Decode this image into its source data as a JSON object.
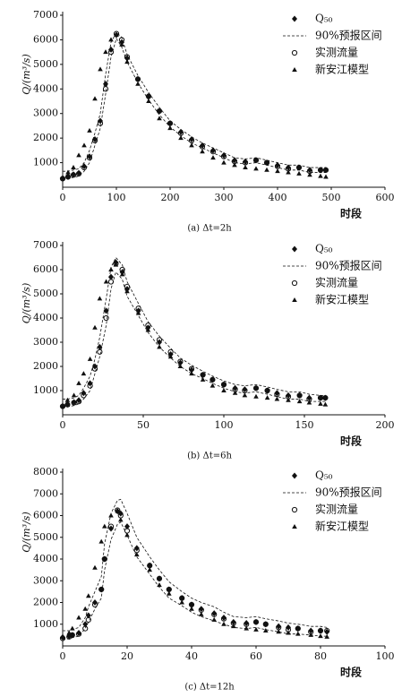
{
  "chart_data": [
    {
      "type": "line",
      "caption": "(a) Δt=2h",
      "xlabel": "时段",
      "ylabel": "Q/(m³/s)",
      "x": [
        0,
        10,
        20,
        30,
        40,
        50,
        60,
        70,
        80,
        90,
        100,
        110,
        120,
        140,
        160,
        180,
        200,
        220,
        240,
        260,
        280,
        300,
        320,
        340,
        360,
        380,
        400,
        420,
        440,
        460,
        480,
        490
      ],
      "xlim": [
        0,
        600
      ],
      "xticks": [
        0,
        100,
        200,
        300,
        400,
        500,
        600
      ],
      "ylim": [
        0,
        7000
      ],
      "yticks": [
        1000,
        2000,
        3000,
        4000,
        5000,
        6000,
        7000
      ],
      "series": [
        {
          "name": "Q₅₀",
          "color": "#111111",
          "marker": "diamond",
          "values": [
            350,
            430,
            520,
            580,
            850,
            1250,
            1950,
            2700,
            4200,
            5600,
            6200,
            5900,
            5250,
            4400,
            3700,
            3100,
            2600,
            2250,
            1950,
            1700,
            1500,
            1300,
            1100,
            1050,
            1100,
            1000,
            900,
            800,
            800,
            700,
            700,
            700
          ]
        },
        {
          "name": "90%预报区间",
          "color": "#111111",
          "marker": "dashed",
          "lower": [
            300,
            350,
            400,
            450,
            650,
            1000,
            1700,
            2400,
            3800,
            5300,
            6050,
            5700,
            5100,
            4250,
            3550,
            2950,
            2450,
            2100,
            1800,
            1600,
            1400,
            1200,
            1000,
            950,
            1000,
            900,
            800,
            700,
            700,
            600,
            600,
            600
          ],
          "upper": [
            650,
            650,
            700,
            750,
            1000,
            1500,
            2200,
            3000,
            4600,
            5900,
            6300,
            6100,
            5400,
            4550,
            3850,
            3250,
            2700,
            2350,
            2050,
            1800,
            1600,
            1400,
            1200,
            1150,
            1200,
            1100,
            1000,
            900,
            900,
            800,
            800,
            800
          ]
        },
        {
          "name": "实测流量",
          "color": "#111111",
          "marker": "circle-open",
          "values": [
            350,
            420,
            500,
            550,
            800,
            1200,
            1900,
            2600,
            4000,
            5500,
            6250,
            6000,
            5300,
            4400,
            3700,
            3100,
            2600,
            2200,
            1900,
            1650,
            1450,
            1250,
            1050,
            1000,
            1100,
            1000,
            850,
            750,
            800,
            650,
            700,
            700
          ]
        },
        {
          "name": "新安江模型",
          "color": "#111111",
          "marker": "triangle",
          "values": [
            400,
            600,
            800,
            1300,
            1700,
            2300,
            3600,
            4800,
            5500,
            6000,
            6200,
            5800,
            5100,
            4200,
            3500,
            2800,
            2400,
            2000,
            1700,
            1450,
            1200,
            1000,
            900,
            800,
            750,
            700,
            650,
            600,
            550,
            500,
            450,
            420
          ]
        }
      ]
    },
    {
      "type": "line",
      "caption": "(b) Δt=6h",
      "xlabel": "时段",
      "ylabel": "Q/(m³/s)",
      "x": [
        0,
        3,
        7,
        10,
        13,
        17,
        20,
        23,
        27,
        30,
        33,
        37,
        40,
        47,
        53,
        60,
        67,
        73,
        80,
        87,
        93,
        100,
        107,
        113,
        120,
        127,
        133,
        140,
        147,
        153,
        160,
        163
      ],
      "xlim": [
        0,
        200
      ],
      "xticks": [
        0,
        50,
        100,
        150,
        200
      ],
      "ylim": [
        0,
        7000
      ],
      "yticks": [
        1000,
        2000,
        3000,
        4000,
        5000,
        6000,
        7000
      ],
      "series": [
        {
          "name": "Q₅₀",
          "color": "#111111",
          "marker": "diamond",
          "values": [
            350,
            430,
            520,
            600,
            900,
            1300,
            2000,
            2800,
            4300,
            5700,
            6300,
            5900,
            5200,
            4300,
            3600,
            3000,
            2500,
            2150,
            1850,
            1650,
            1450,
            1250,
            1100,
            1050,
            1100,
            1000,
            900,
            800,
            800,
            700,
            700,
            700
          ]
        },
        {
          "name": "90%预报区间",
          "color": "#111111",
          "marker": "dashed",
          "lower": [
            300,
            330,
            380,
            450,
            650,
            1000,
            1700,
            2400,
            3700,
            5200,
            5900,
            5600,
            4900,
            4100,
            3400,
            2800,
            2350,
            2000,
            1700,
            1500,
            1300,
            1100,
            950,
            900,
            950,
            850,
            750,
            650,
            650,
            550,
            550,
            550
          ],
          "upper": [
            650,
            650,
            700,
            800,
            1100,
            1600,
            2300,
            3200,
            4800,
            6100,
            6500,
            6200,
            5500,
            4600,
            3850,
            3250,
            2750,
            2350,
            2050,
            1800,
            1600,
            1400,
            1250,
            1200,
            1250,
            1150,
            1050,
            950,
            950,
            850,
            800,
            800
          ]
        },
        {
          "name": "实测流量",
          "color": "#111111",
          "marker": "circle-open",
          "values": [
            350,
            420,
            500,
            550,
            800,
            1200,
            1900,
            2600,
            4000,
            5500,
            6250,
            6000,
            5300,
            4400,
            3700,
            3100,
            2600,
            2200,
            1900,
            1650,
            1450,
            1250,
            1050,
            1000,
            1100,
            1000,
            850,
            750,
            800,
            650,
            700,
            700
          ]
        },
        {
          "name": "新安江模型",
          "color": "#111111",
          "marker": "triangle",
          "values": [
            400,
            600,
            800,
            1300,
            1700,
            2300,
            3600,
            4800,
            5500,
            6000,
            6200,
            5800,
            5100,
            4200,
            3500,
            2800,
            2400,
            2000,
            1700,
            1450,
            1200,
            1000,
            900,
            800,
            750,
            700,
            650,
            600,
            550,
            500,
            450,
            420
          ]
        }
      ]
    },
    {
      "type": "line",
      "caption": "(c) Δt=12h",
      "xlabel": "时段",
      "ylabel": "Q/(m³/s)",
      "x": [
        0,
        2,
        3,
        5,
        7,
        8,
        10,
        12,
        13,
        15,
        17,
        18,
        20,
        23,
        27,
        30,
        33,
        37,
        40,
        43,
        47,
        50,
        53,
        57,
        60,
        63,
        67,
        70,
        73,
        77,
        80,
        82
      ],
      "xlim": [
        0,
        100
      ],
      "xticks": [
        0,
        20,
        40,
        60,
        80,
        100
      ],
      "ylim": [
        0,
        8000
      ],
      "yticks": [
        1000,
        2000,
        3000,
        4000,
        5000,
        6000,
        7000,
        8000
      ],
      "series": [
        {
          "name": "Q₅₀",
          "color": "#111111",
          "marker": "diamond",
          "values": [
            400,
            450,
            500,
            600,
            1000,
            1400,
            2000,
            2600,
            4000,
            5400,
            6200,
            6100,
            5500,
            4500,
            3700,
            3100,
            2600,
            2200,
            1900,
            1700,
            1500,
            1300,
            1100,
            1050,
            1100,
            1000,
            900,
            850,
            800,
            700,
            700,
            650
          ]
        },
        {
          "name": "90%预报区间",
          "color": "#111111",
          "marker": "dashed",
          "lower": [
            300,
            330,
            380,
            450,
            800,
            1100,
            1700,
            2200,
            3500,
            4900,
            5600,
            5700,
            5100,
            4100,
            3300,
            2700,
            2200,
            1850,
            1550,
            1350,
            1150,
            1000,
            850,
            800,
            850,
            750,
            650,
            550,
            550,
            500,
            450,
            450
          ],
          "upper": [
            700,
            700,
            750,
            850,
            1300,
            1800,
            2500,
            3200,
            4700,
            6100,
            6700,
            6750,
            6100,
            5000,
            4100,
            3500,
            2950,
            2500,
            2200,
            2000,
            1800,
            1550,
            1350,
            1300,
            1350,
            1250,
            1150,
            1050,
            1000,
            900,
            900,
            850
          ]
        },
        {
          "name": "实测流量",
          "color": "#111111",
          "marker": "circle-open",
          "values": [
            350,
            420,
            500,
            550,
            800,
            1200,
            1900,
            2600,
            4000,
            5500,
            6250,
            6000,
            5300,
            4400,
            3700,
            3100,
            2600,
            2200,
            1900,
            1650,
            1450,
            1250,
            1050,
            1000,
            1100,
            1000,
            850,
            750,
            800,
            650,
            700,
            700
          ]
        },
        {
          "name": "新安江模型",
          "color": "#111111",
          "marker": "triangle",
          "values": [
            400,
            600,
            800,
            1300,
            1700,
            2300,
            3600,
            4800,
            5500,
            6000,
            6200,
            5800,
            5100,
            4200,
            3500,
            2800,
            2400,
            2000,
            1700,
            1450,
            1200,
            1000,
            900,
            800,
            750,
            700,
            650,
            600,
            550,
            500,
            450,
            420
          ]
        }
      ]
    }
  ]
}
